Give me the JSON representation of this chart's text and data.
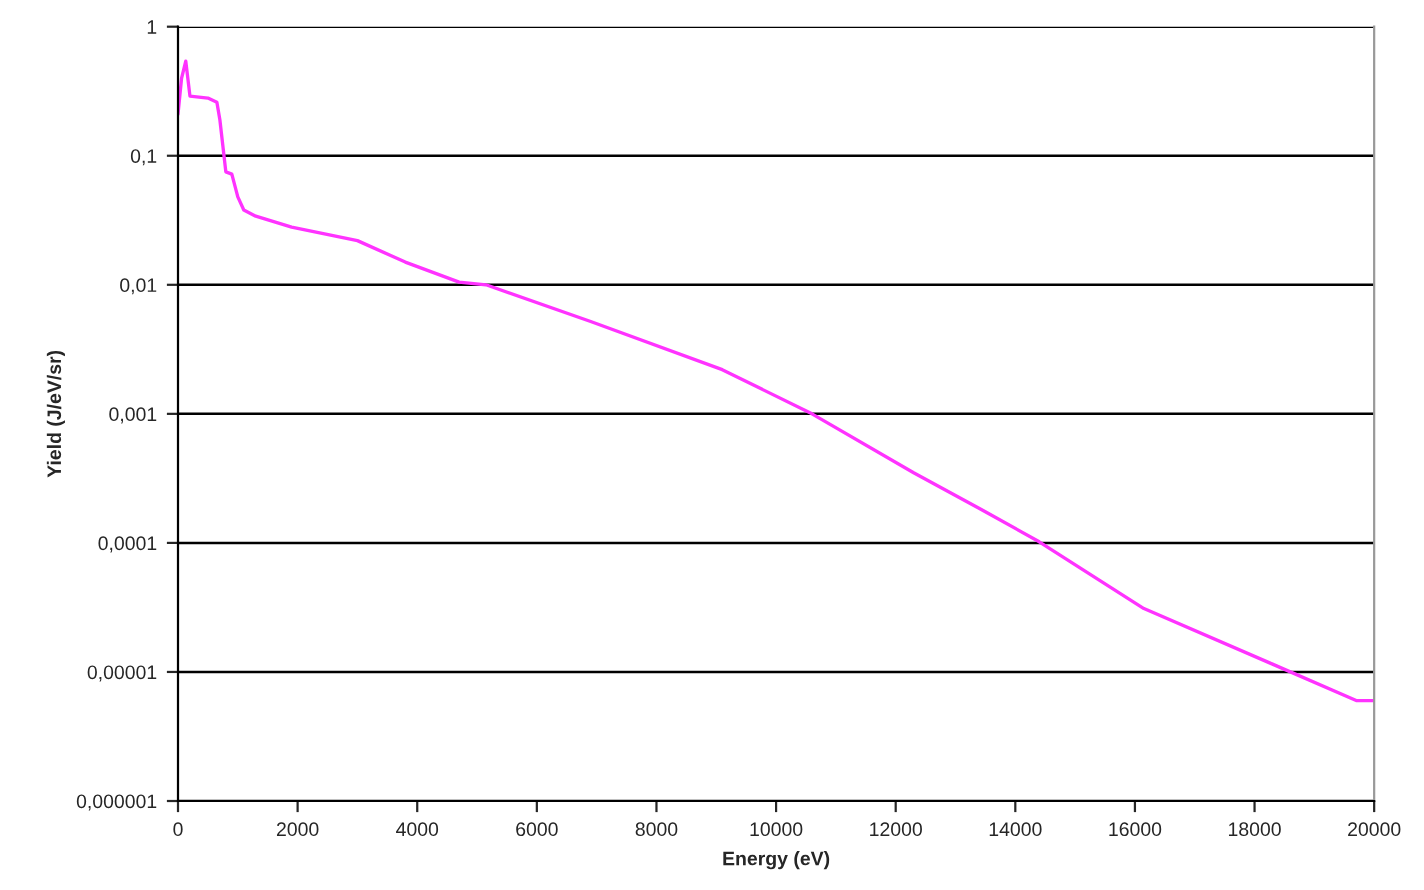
{
  "chart_data": {
    "type": "line",
    "xlabel": "Energy (eV)",
    "ylabel": "Yield (J/eV/sr)",
    "log": "y",
    "grid": "y",
    "x": [
      0,
      60,
      130,
      200,
      500,
      650,
      700,
      800,
      900,
      1000,
      1100,
      1300,
      1900,
      3000,
      3800,
      4700,
      5150,
      6900,
      9100,
      10600,
      12300,
      13400,
      14400,
      16150,
      18300,
      19700,
      20000
    ],
    "series": [
      {
        "color": "#ff33ff",
        "values": [
          0.21,
          0.4,
          0.54,
          0.29,
          0.28,
          0.26,
          0.19,
          0.075,
          0.072,
          0.048,
          0.038,
          0.034,
          0.028,
          0.022,
          0.015,
          0.0105,
          0.01,
          0.0052,
          0.0022,
          0.001,
          0.00035,
          0.000185,
          0.000102,
          3.1e-05,
          1.15e-05,
          6e-06,
          6e-06
        ]
      }
    ],
    "xlim": [
      0,
      20000
    ],
    "xticks": [
      0,
      2000,
      4000,
      6000,
      8000,
      10000,
      12000,
      14000,
      16000,
      18000,
      20000
    ],
    "ylim": [
      1e-06,
      1
    ],
    "yticks": [
      {
        "value": 1e-06,
        "label": "0,000001"
      },
      {
        "value": 1e-05,
        "label": "0,00001"
      },
      {
        "value": 0.0001,
        "label": "0,0001"
      },
      {
        "value": 0.001,
        "label": "0,001"
      },
      {
        "value": 0.01,
        "label": "0,01"
      },
      {
        "value": 0.1,
        "label": "0,1"
      },
      {
        "value": 1,
        "label": "1"
      }
    ]
  }
}
